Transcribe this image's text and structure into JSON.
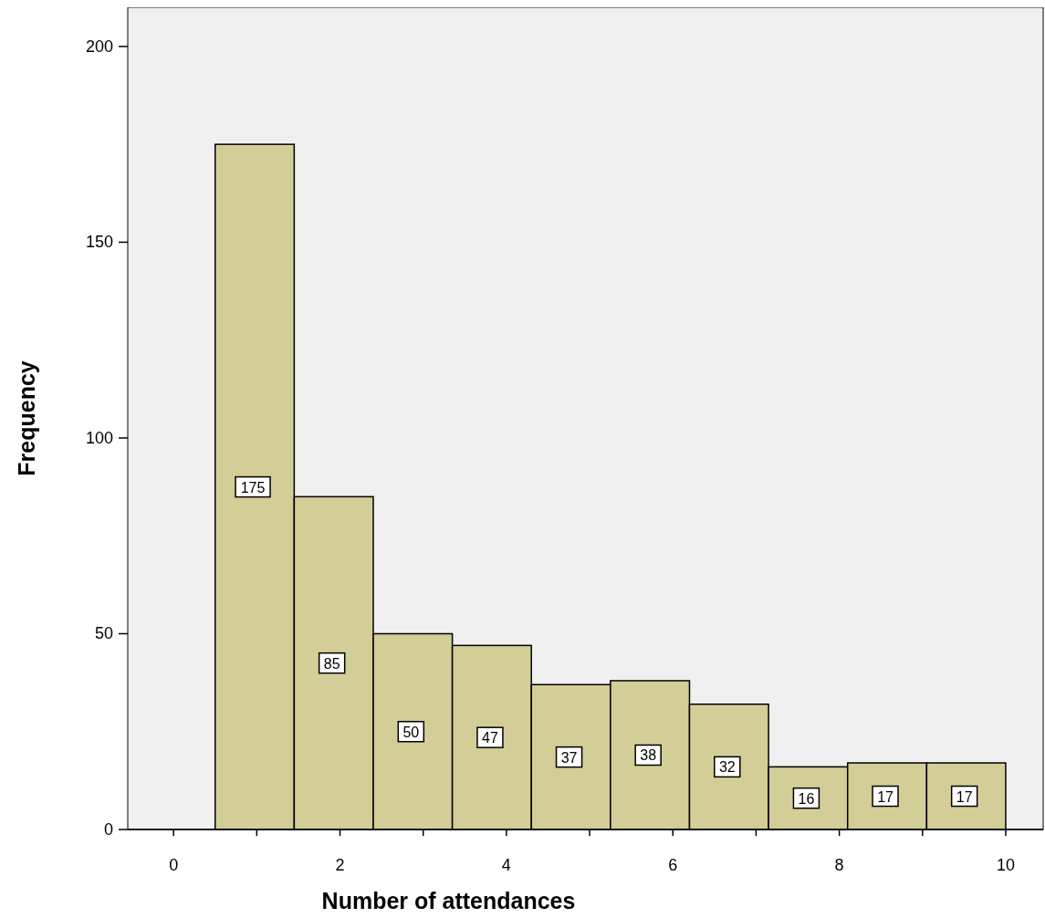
{
  "chart_data": {
    "type": "histogram",
    "xlabel": "Number of attendances",
    "ylabel": "Frequency",
    "bins": [
      0.5,
      1.45,
      2.4,
      3.35,
      4.3,
      5.25,
      6.2,
      7.15,
      8.1,
      9.05,
      10
    ],
    "values": [
      175,
      85,
      50,
      47,
      37,
      38,
      32,
      16,
      17,
      17
    ],
    "color": "#d3ce97",
    "xlim": [
      -0.55,
      10.45
    ],
    "xticks": [
      0,
      {
        "value": 1,
        "label": null
      },
      2,
      {
        "value": 3,
        "label": null
      },
      4,
      {
        "value": 5,
        "label": null
      },
      6,
      {
        "value": 7,
        "label": null
      },
      8,
      {
        "value": 9,
        "label": null
      },
      10
    ],
    "ylim": [
      0,
      210
    ],
    "yticks": [
      0,
      50,
      100,
      150,
      200
    ],
    "data_labels": true,
    "grid": false
  }
}
